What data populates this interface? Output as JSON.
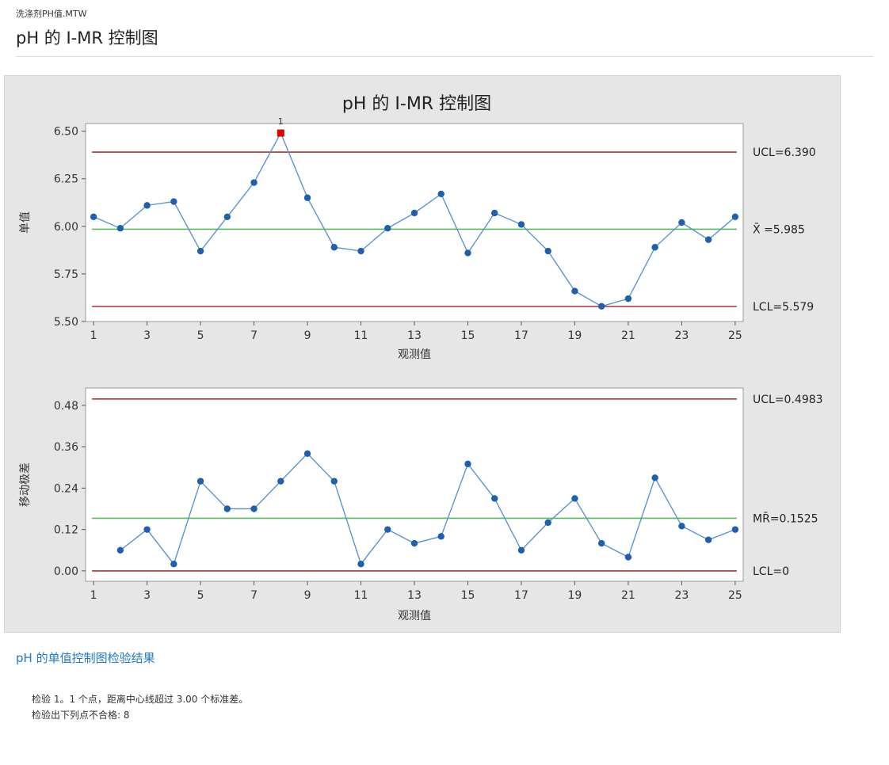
{
  "header": {
    "file_name": "洗涤剂PH值.MTW",
    "title": "pH 的 I-MR 控制图"
  },
  "chart_data": [
    {
      "type": "line",
      "title": "pH 的 I-MR 控制图",
      "panel": "individuals",
      "xlabel": "观测值",
      "ylabel": "单值",
      "x": [
        1,
        2,
        3,
        4,
        5,
        6,
        7,
        8,
        9,
        10,
        11,
        12,
        13,
        14,
        15,
        16,
        17,
        18,
        19,
        20,
        21,
        22,
        23,
        24,
        25
      ],
      "values": [
        6.05,
        5.99,
        6.11,
        6.13,
        5.87,
        6.05,
        6.23,
        6.49,
        6.15,
        5.89,
        5.87,
        5.99,
        6.07,
        6.17,
        5.86,
        6.07,
        6.01,
        5.87,
        5.66,
        5.58,
        5.62,
        5.89,
        6.02,
        5.93,
        6.05
      ],
      "ylim": [
        5.5,
        6.54
      ],
      "yticks": [
        "5.50",
        "5.75",
        "6.00",
        "6.25",
        "6.50"
      ],
      "xticks": [
        "1",
        "3",
        "5",
        "7",
        "9",
        "11",
        "13",
        "15",
        "17",
        "19",
        "21",
        "23",
        "25"
      ],
      "ucl": 6.39,
      "center": 5.985,
      "lcl": 5.579,
      "ucl_label": "UCL=6.390",
      "center_label": "X̄ =5.985",
      "lcl_label": "LCL=5.579",
      "flagged": [
        {
          "x": 8,
          "label": "1"
        }
      ],
      "grid": false,
      "colors": {
        "points": "#1f5fad",
        "line": "#5b95d0",
        "limits": "#a83232",
        "center": "#5cb85c",
        "flag": "#e00000"
      }
    },
    {
      "type": "line",
      "panel": "moving-range",
      "xlabel": "观测值",
      "ylabel": "移动极差",
      "x": [
        2,
        3,
        4,
        5,
        6,
        7,
        8,
        9,
        10,
        11,
        12,
        13,
        14,
        15,
        16,
        17,
        18,
        19,
        20,
        21,
        22,
        23,
        24,
        25
      ],
      "values": [
        0.06,
        0.12,
        0.02,
        0.26,
        0.18,
        0.18,
        0.26,
        0.34,
        0.26,
        0.02,
        0.12,
        0.08,
        0.1,
        0.31,
        0.21,
        0.06,
        0.14,
        0.21,
        0.08,
        0.04,
        0.27,
        0.13,
        0.09,
        0.12
      ],
      "ylim": [
        -0.03,
        0.53
      ],
      "yticks": [
        "0.00",
        "0.12",
        "0.24",
        "0.36",
        "0.48"
      ],
      "xticks": [
        "1",
        "3",
        "5",
        "7",
        "9",
        "11",
        "13",
        "15",
        "17",
        "19",
        "21",
        "23",
        "25"
      ],
      "ucl": 0.4983,
      "center": 0.1525,
      "lcl": 0,
      "ucl_label": "UCL=0.4983",
      "center_label": "MR̄=0.1525",
      "lcl_label": "LCL=0",
      "grid": false,
      "colors": {
        "points": "#1f5fad",
        "line": "#5b95d0",
        "limits": "#a83232",
        "center": "#5cb85c"
      }
    }
  ],
  "results": {
    "heading": "pH 的单值控制图检验结果",
    "line1": "检验 1。1 个点，距离中心线超过 3.00 个标准差。",
    "line2": "检验出下列点不合格:  8"
  }
}
